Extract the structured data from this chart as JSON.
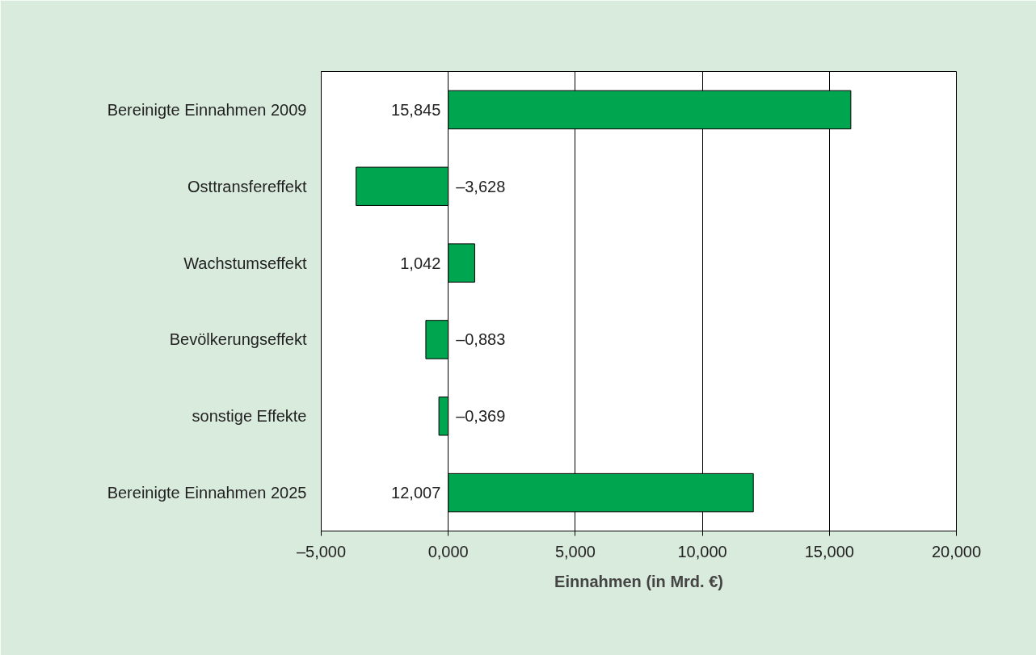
{
  "chart_data": {
    "type": "bar",
    "orientation": "horizontal",
    "xlabel": "Einnahmen (in Mrd. €)",
    "categories": [
      "Bereinigte Einnahmen 2009",
      "Osttransfereffekt",
      "Wachstumseffekt",
      "Bevölkerungseffekt",
      "sonstige Effekte",
      "Bereinigte Einnahmen 2025"
    ],
    "values": [
      15.845,
      -3.628,
      1.042,
      -0.883,
      -0.369,
      12.007
    ],
    "value_labels": [
      "15,845",
      "–3,628",
      "1,042",
      "–0,883",
      "–0,369",
      "12,007"
    ],
    "color": "#00a550",
    "xlim": [
      -5,
      20
    ],
    "xticks": [
      {
        "value": -5,
        "label": "–5,000"
      },
      {
        "value": 0,
        "label": "0,000"
      },
      {
        "value": 5,
        "label": "5,000"
      },
      {
        "value": 10,
        "label": "10,000"
      },
      {
        "value": 15,
        "label": "15,000"
      },
      {
        "value": 20,
        "label": "20,000"
      }
    ],
    "grid": "x"
  }
}
